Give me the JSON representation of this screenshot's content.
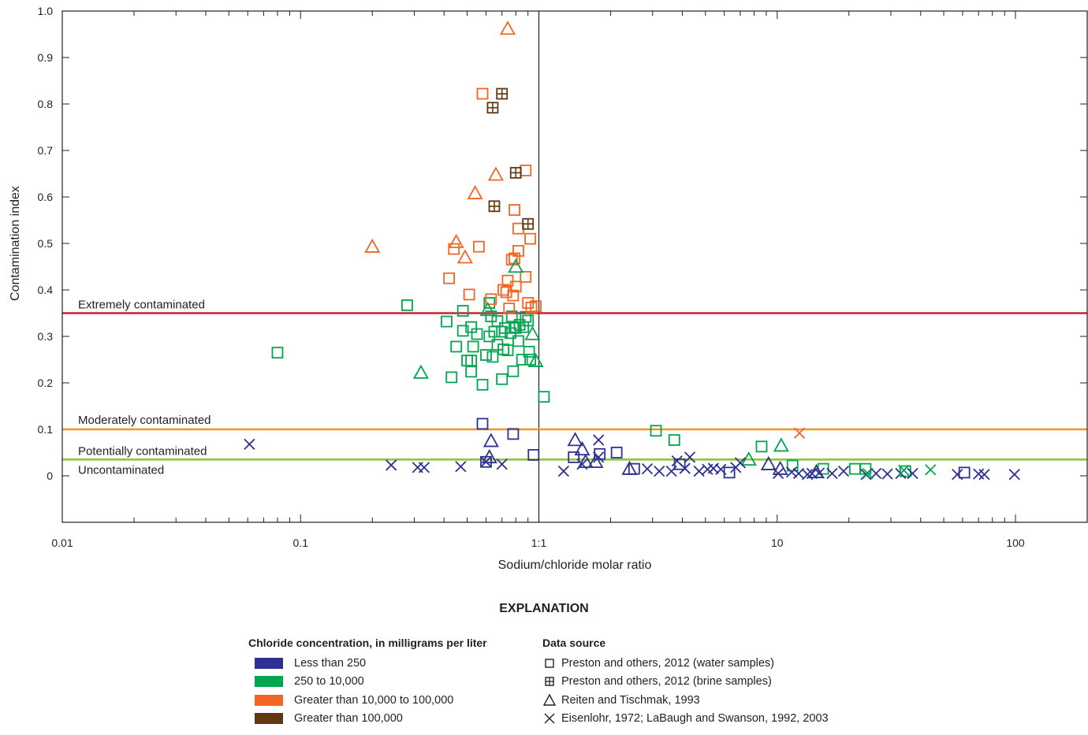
{
  "chart_data": {
    "type": "scatter",
    "xlabel": "Sodium/chloride molar ratio",
    "ylabel": "Contamination index",
    "x_scale": "log",
    "xlim": [
      0.01,
      200
    ],
    "ylim": [
      -0.1,
      1.0
    ],
    "x_ticks": [
      {
        "value": 0.01,
        "label": "0.01"
      },
      {
        "value": 0.1,
        "label": "0.1"
      },
      {
        "value": 1,
        "label": "1:1"
      },
      {
        "value": 10,
        "label": "10"
      },
      {
        "value": 100,
        "label": "100"
      }
    ],
    "y_ticks": [
      {
        "value": 0,
        "label": "0"
      },
      {
        "value": 0.1,
        "label": "0.1"
      },
      {
        "value": 0.2,
        "label": "0.2"
      },
      {
        "value": 0.3,
        "label": "0.3"
      },
      {
        "value": 0.4,
        "label": "0.4"
      },
      {
        "value": 0.5,
        "label": "0.5"
      },
      {
        "value": 0.6,
        "label": "0.6"
      },
      {
        "value": 0.7,
        "label": "0.7"
      },
      {
        "value": 0.8,
        "label": "0.8"
      },
      {
        "value": 0.9,
        "label": "0.9"
      },
      {
        "value": 1.0,
        "label": "1.0"
      }
    ],
    "vertical_reference": 1,
    "thresholds": [
      {
        "label": "Extremely contaminated",
        "value": 0.35,
        "color": "#c1272d"
      },
      {
        "label": "Moderately contaminated",
        "value": 0.1,
        "color": "#f7941d"
      },
      {
        "label": "Potentially contaminated",
        "value": 0.035,
        "color": "#8dc63f"
      },
      {
        "label": "Uncontaminated",
        "value": null,
        "color": null
      }
    ],
    "colors": {
      "lt250": "#2e3192",
      "250to10000": "#00a650",
      "10000to100000": "#f26522",
      "gt100000": "#603913"
    },
    "series": [
      {
        "name": "Preston and others, 2012 (water samples)",
        "marker": "square",
        "points": [
          [
            0.08,
            0.265,
            "250to10000"
          ],
          [
            0.28,
            0.367,
            "250to10000"
          ],
          [
            0.41,
            0.332,
            "250to10000"
          ],
          [
            0.43,
            0.212,
            "250to10000"
          ],
          [
            0.45,
            0.278,
            "250to10000"
          ],
          [
            0.48,
            0.355,
            "250to10000"
          ],
          [
            0.48,
            0.312,
            "250to10000"
          ],
          [
            0.5,
            0.248,
            "250to10000"
          ],
          [
            0.52,
            0.32,
            "250to10000"
          ],
          [
            0.52,
            0.248,
            "250to10000"
          ],
          [
            0.52,
            0.224,
            "250to10000"
          ],
          [
            0.53,
            0.278,
            "250to10000"
          ],
          [
            0.55,
            0.305,
            "250to10000"
          ],
          [
            0.58,
            0.196,
            "250to10000"
          ],
          [
            0.6,
            0.26,
            "250to10000"
          ],
          [
            0.62,
            0.3,
            "250to10000"
          ],
          [
            0.62,
            0.372,
            "250to10000"
          ],
          [
            0.63,
            0.343,
            "250to10000"
          ],
          [
            0.64,
            0.256,
            "250to10000"
          ],
          [
            0.65,
            0.31,
            "250to10000"
          ],
          [
            0.67,
            0.333,
            "250to10000"
          ],
          [
            0.67,
            0.282,
            "250to10000"
          ],
          [
            0.7,
            0.208,
            "250to10000"
          ],
          [
            0.7,
            0.31,
            "250to10000"
          ],
          [
            0.71,
            0.272,
            "250to10000"
          ],
          [
            0.72,
            0.318,
            "250to10000"
          ],
          [
            0.74,
            0.27,
            "250to10000"
          ],
          [
            0.76,
            0.307,
            "250to10000"
          ],
          [
            0.77,
            0.343,
            "250to10000"
          ],
          [
            0.78,
            0.225,
            "250to10000"
          ],
          [
            0.79,
            0.32,
            "250to10000"
          ],
          [
            0.8,
            0.318,
            "250to10000"
          ],
          [
            0.82,
            0.29,
            "250to10000"
          ],
          [
            0.83,
            0.325,
            "250to10000"
          ],
          [
            0.85,
            0.25,
            "250to10000"
          ],
          [
            0.86,
            0.32,
            "250to10000"
          ],
          [
            0.88,
            0.342,
            "250to10000"
          ],
          [
            0.9,
            0.334,
            "250to10000"
          ],
          [
            0.91,
            0.267,
            "250to10000"
          ],
          [
            0.92,
            0.25,
            "250to10000"
          ],
          [
            1.05,
            0.17,
            "250to10000"
          ],
          [
            3.1,
            0.097,
            "250to10000"
          ],
          [
            3.7,
            0.077,
            "250to10000"
          ],
          [
            8.6,
            0.063,
            "250to10000"
          ],
          [
            11.6,
            0.022,
            "250to10000"
          ],
          [
            15.6,
            0.015,
            "250to10000"
          ],
          [
            21.2,
            0.015,
            "250to10000"
          ],
          [
            23.5,
            0.015,
            "250to10000"
          ],
          [
            34.5,
            0.01,
            "250to10000"
          ],
          [
            0.42,
            0.425,
            "10000to100000"
          ],
          [
            0.44,
            0.488,
            "10000to100000"
          ],
          [
            0.51,
            0.39,
            "10000to100000"
          ],
          [
            0.56,
            0.493,
            "10000to100000"
          ],
          [
            0.58,
            0.822,
            "10000to100000"
          ],
          [
            0.63,
            0.38,
            "10000to100000"
          ],
          [
            0.71,
            0.4,
            "10000to100000"
          ],
          [
            0.73,
            0.395,
            "10000to100000"
          ],
          [
            0.74,
            0.42,
            "10000to100000"
          ],
          [
            0.75,
            0.36,
            "10000to100000"
          ],
          [
            0.77,
            0.465,
            "10000to100000"
          ],
          [
            0.78,
            0.388,
            "10000to100000"
          ],
          [
            0.79,
            0.468,
            "10000to100000"
          ],
          [
            0.79,
            0.572,
            "10000to100000"
          ],
          [
            0.8,
            0.407,
            "10000to100000"
          ],
          [
            0.82,
            0.532,
            "10000to100000"
          ],
          [
            0.82,
            0.484,
            "10000to100000"
          ],
          [
            0.88,
            0.428,
            "10000to100000"
          ],
          [
            0.88,
            0.657,
            "10000to100000"
          ],
          [
            0.9,
            0.372,
            "10000to100000"
          ],
          [
            0.92,
            0.51,
            "10000to100000"
          ],
          [
            0.93,
            0.362,
            "10000to100000"
          ],
          [
            0.97,
            0.365,
            "10000to100000"
          ],
          [
            0.58,
            0.112,
            "lt250"
          ],
          [
            0.6,
            0.03,
            "lt250"
          ],
          [
            0.78,
            0.09,
            "lt250"
          ],
          [
            0.95,
            0.045,
            "lt250"
          ],
          [
            1.4,
            0.04,
            "lt250"
          ],
          [
            1.8,
            0.047,
            "lt250"
          ],
          [
            2.12,
            0.05,
            "lt250"
          ],
          [
            2.51,
            0.015,
            "lt250"
          ],
          [
            3.9,
            0.025,
            "lt250"
          ],
          [
            6.3,
            0.007,
            "lt250"
          ],
          [
            61,
            0.007,
            "lt250"
          ]
        ]
      },
      {
        "name": "Preston and others, 2012 (brine samples)",
        "marker": "square-plus",
        "points": [
          [
            0.64,
            0.792,
            "gt100000"
          ],
          [
            0.7,
            0.822,
            "gt100000"
          ],
          [
            0.65,
            0.58,
            "gt100000"
          ],
          [
            0.8,
            0.652,
            "gt100000"
          ],
          [
            0.9,
            0.542,
            "gt100000"
          ]
        ]
      },
      {
        "name": "Reiten and Tischmak, 1993",
        "marker": "triangle",
        "points": [
          [
            0.2,
            0.493,
            "10000to100000"
          ],
          [
            0.45,
            0.503,
            "10000to100000"
          ],
          [
            0.49,
            0.47,
            "10000to100000"
          ],
          [
            0.54,
            0.608,
            "10000to100000"
          ],
          [
            0.66,
            0.648,
            "10000to100000"
          ],
          [
            0.74,
            0.962,
            "10000to100000"
          ],
          [
            0.32,
            0.222,
            "250to10000"
          ],
          [
            0.61,
            0.357,
            "250to10000"
          ],
          [
            0.8,
            0.45,
            "250to10000"
          ],
          [
            0.94,
            0.305,
            "250to10000"
          ],
          [
            0.97,
            0.247,
            "250to10000"
          ],
          [
            7.6,
            0.035,
            "250to10000"
          ],
          [
            10.4,
            0.065,
            "250to10000"
          ],
          [
            0.63,
            0.075,
            "lt250"
          ],
          [
            0.62,
            0.04,
            "lt250"
          ],
          [
            1.42,
            0.077,
            "lt250"
          ],
          [
            1.52,
            0.057,
            "lt250"
          ],
          [
            1.57,
            0.03,
            "lt250"
          ],
          [
            1.73,
            0.03,
            "lt250"
          ],
          [
            2.4,
            0.015,
            "lt250"
          ],
          [
            9.2,
            0.025,
            "lt250"
          ],
          [
            10.3,
            0.015,
            "lt250"
          ],
          [
            14.6,
            0.008,
            "lt250"
          ]
        ]
      },
      {
        "name": "Eisenlohr, 1972; LaBaugh and Swanson, 1992, 2003",
        "marker": "x",
        "points": [
          [
            0.061,
            0.068,
            "lt250"
          ],
          [
            0.24,
            0.023,
            "lt250"
          ],
          [
            0.31,
            0.018,
            "lt250"
          ],
          [
            0.33,
            0.018,
            "lt250"
          ],
          [
            0.47,
            0.02,
            "lt250"
          ],
          [
            0.6,
            0.03,
            "lt250"
          ],
          [
            0.7,
            0.025,
            "lt250"
          ],
          [
            1.27,
            0.01,
            "lt250"
          ],
          [
            1.52,
            0.025,
            "lt250"
          ],
          [
            1.78,
            0.077,
            "lt250"
          ],
          [
            1.78,
            0.04,
            "lt250"
          ],
          [
            2.85,
            0.015,
            "lt250"
          ],
          [
            3.2,
            0.01,
            "lt250"
          ],
          [
            3.6,
            0.01,
            "lt250"
          ],
          [
            3.8,
            0.032,
            "lt250"
          ],
          [
            4.1,
            0.016,
            "lt250"
          ],
          [
            4.3,
            0.04,
            "lt250"
          ],
          [
            4.7,
            0.01,
            "lt250"
          ],
          [
            5.1,
            0.014,
            "lt250"
          ],
          [
            5.4,
            0.016,
            "lt250"
          ],
          [
            5.8,
            0.014,
            "lt250"
          ],
          [
            6.7,
            0.018,
            "lt250"
          ],
          [
            7.0,
            0.028,
            "lt250"
          ],
          [
            10.1,
            0.005,
            "lt250"
          ],
          [
            11.5,
            0.008,
            "lt250"
          ],
          [
            12.3,
            0.005,
            "lt250"
          ],
          [
            13.4,
            0.003,
            "lt250"
          ],
          [
            14.0,
            0.005,
            "lt250"
          ],
          [
            15.0,
            0.006,
            "lt250"
          ],
          [
            17.0,
            0.005,
            "lt250"
          ],
          [
            19.0,
            0.01,
            "lt250"
          ],
          [
            23.6,
            0.003,
            "lt250"
          ],
          [
            26.0,
            0.005,
            "lt250"
          ],
          [
            29.0,
            0.004,
            "lt250"
          ],
          [
            33.0,
            0.005,
            "lt250"
          ],
          [
            37.0,
            0.005,
            "lt250"
          ],
          [
            57.0,
            0.003,
            "lt250"
          ],
          [
            70.0,
            0.004,
            "lt250"
          ],
          [
            74.0,
            0.003,
            "lt250"
          ],
          [
            99.0,
            0.003,
            "lt250"
          ],
          [
            12.4,
            0.092,
            "10000to100000"
          ],
          [
            24.0,
            0.005,
            "250to10000"
          ],
          [
            34.0,
            0.012,
            "250to10000"
          ],
          [
            44.0,
            0.013,
            "250to10000"
          ]
        ]
      }
    ]
  },
  "legend": {
    "title": "EXPLANATION",
    "concentration_heading": "Chloride concentration, in milligrams per liter",
    "concentration_items": [
      {
        "label": "Less than 250",
        "color": "#2e3192"
      },
      {
        "label": "250 to 10,000",
        "color": "#00a650"
      },
      {
        "label": "Greater than 10,000 to 100,000",
        "color": "#f26522"
      },
      {
        "label": "Greater than 100,000",
        "color": "#603913"
      }
    ],
    "source_heading": "Data source",
    "source_items": [
      {
        "label": "Preston and others, 2012 (water samples)",
        "icon": "square-icon"
      },
      {
        "label": "Preston and others, 2012 (brine samples)",
        "icon": "square-plus-icon"
      },
      {
        "label": "Reiten and Tischmak, 1993",
        "icon": "triangle-icon"
      },
      {
        "label": "Eisenlohr, 1972; LaBaugh and Swanson, 1992, 2003",
        "icon": "x-icon"
      }
    ]
  }
}
